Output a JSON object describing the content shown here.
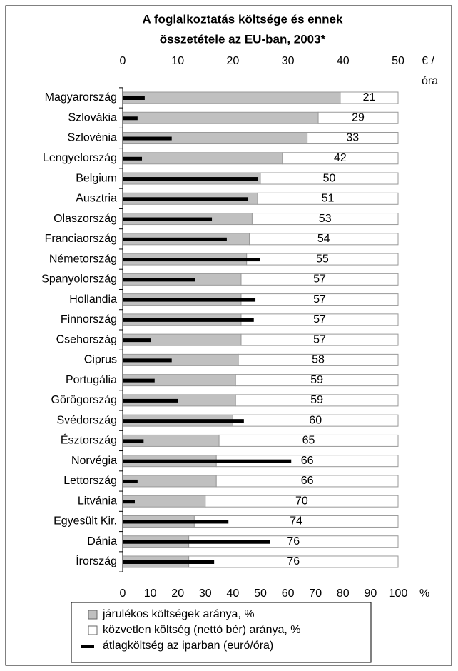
{
  "chart_data": {
    "type": "bar",
    "title": [
      "A foglalkoztatás költsége és ennek",
      "összetétele az EU-ban, 2003*"
    ],
    "categories": [
      "Magyarország",
      "Szlovákia",
      "Szlovénia",
      "Lengyelország",
      "Belgium",
      "Ausztria",
      "Olaszország",
      "Franciaország",
      "Németország",
      "Spanyolország",
      "Hollandia",
      "Finnország",
      "Csehország",
      "Ciprus",
      "Portugália",
      "Görögország",
      "Svédország",
      "Észtország",
      "Norvégia",
      "Lettország",
      "Litvánia",
      "Egyesült Kir.",
      "Dánia",
      "Írország"
    ],
    "series": [
      {
        "name": "járulékos költségek aránya, %",
        "color": "#c0c0c0",
        "values": [
          79,
          71,
          67,
          58,
          50,
          49,
          47,
          46,
          45,
          43,
          43,
          43,
          43,
          42,
          41,
          41,
          40,
          35,
          34,
          34,
          30,
          26,
          24,
          24
        ]
      },
      {
        "name": "közvetlen költség (nettó bér) aránya, %",
        "color": "#ffffff",
        "values": [
          21,
          29,
          33,
          42,
          50,
          51,
          53,
          54,
          55,
          57,
          57,
          57,
          57,
          58,
          59,
          59,
          60,
          65,
          66,
          66,
          70,
          74,
          76,
          76
        ]
      },
      {
        "name": "átlagköltség az iparban (euró/óra)",
        "color": "#000000",
        "axis": "x2",
        "values": [
          4.0,
          2.7,
          8.9,
          3.5,
          24.6,
          22.8,
          16.2,
          18.9,
          24.9,
          13.1,
          24.1,
          23.8,
          5.1,
          8.9,
          5.8,
          10.0,
          22.0,
          3.8,
          30.6,
          2.7,
          2.2,
          19.2,
          26.7,
          16.6
        ]
      }
    ],
    "xlim": [
      0,
      100
    ],
    "xticks": [
      0,
      10,
      20,
      30,
      40,
      50,
      60,
      70,
      80,
      90,
      100
    ],
    "xlabel": "%",
    "x2lim": [
      0,
      50
    ],
    "x2ticks": [
      0,
      10,
      20,
      30,
      40,
      50
    ],
    "x2label": [
      "€ /",
      "óra"
    ]
  }
}
